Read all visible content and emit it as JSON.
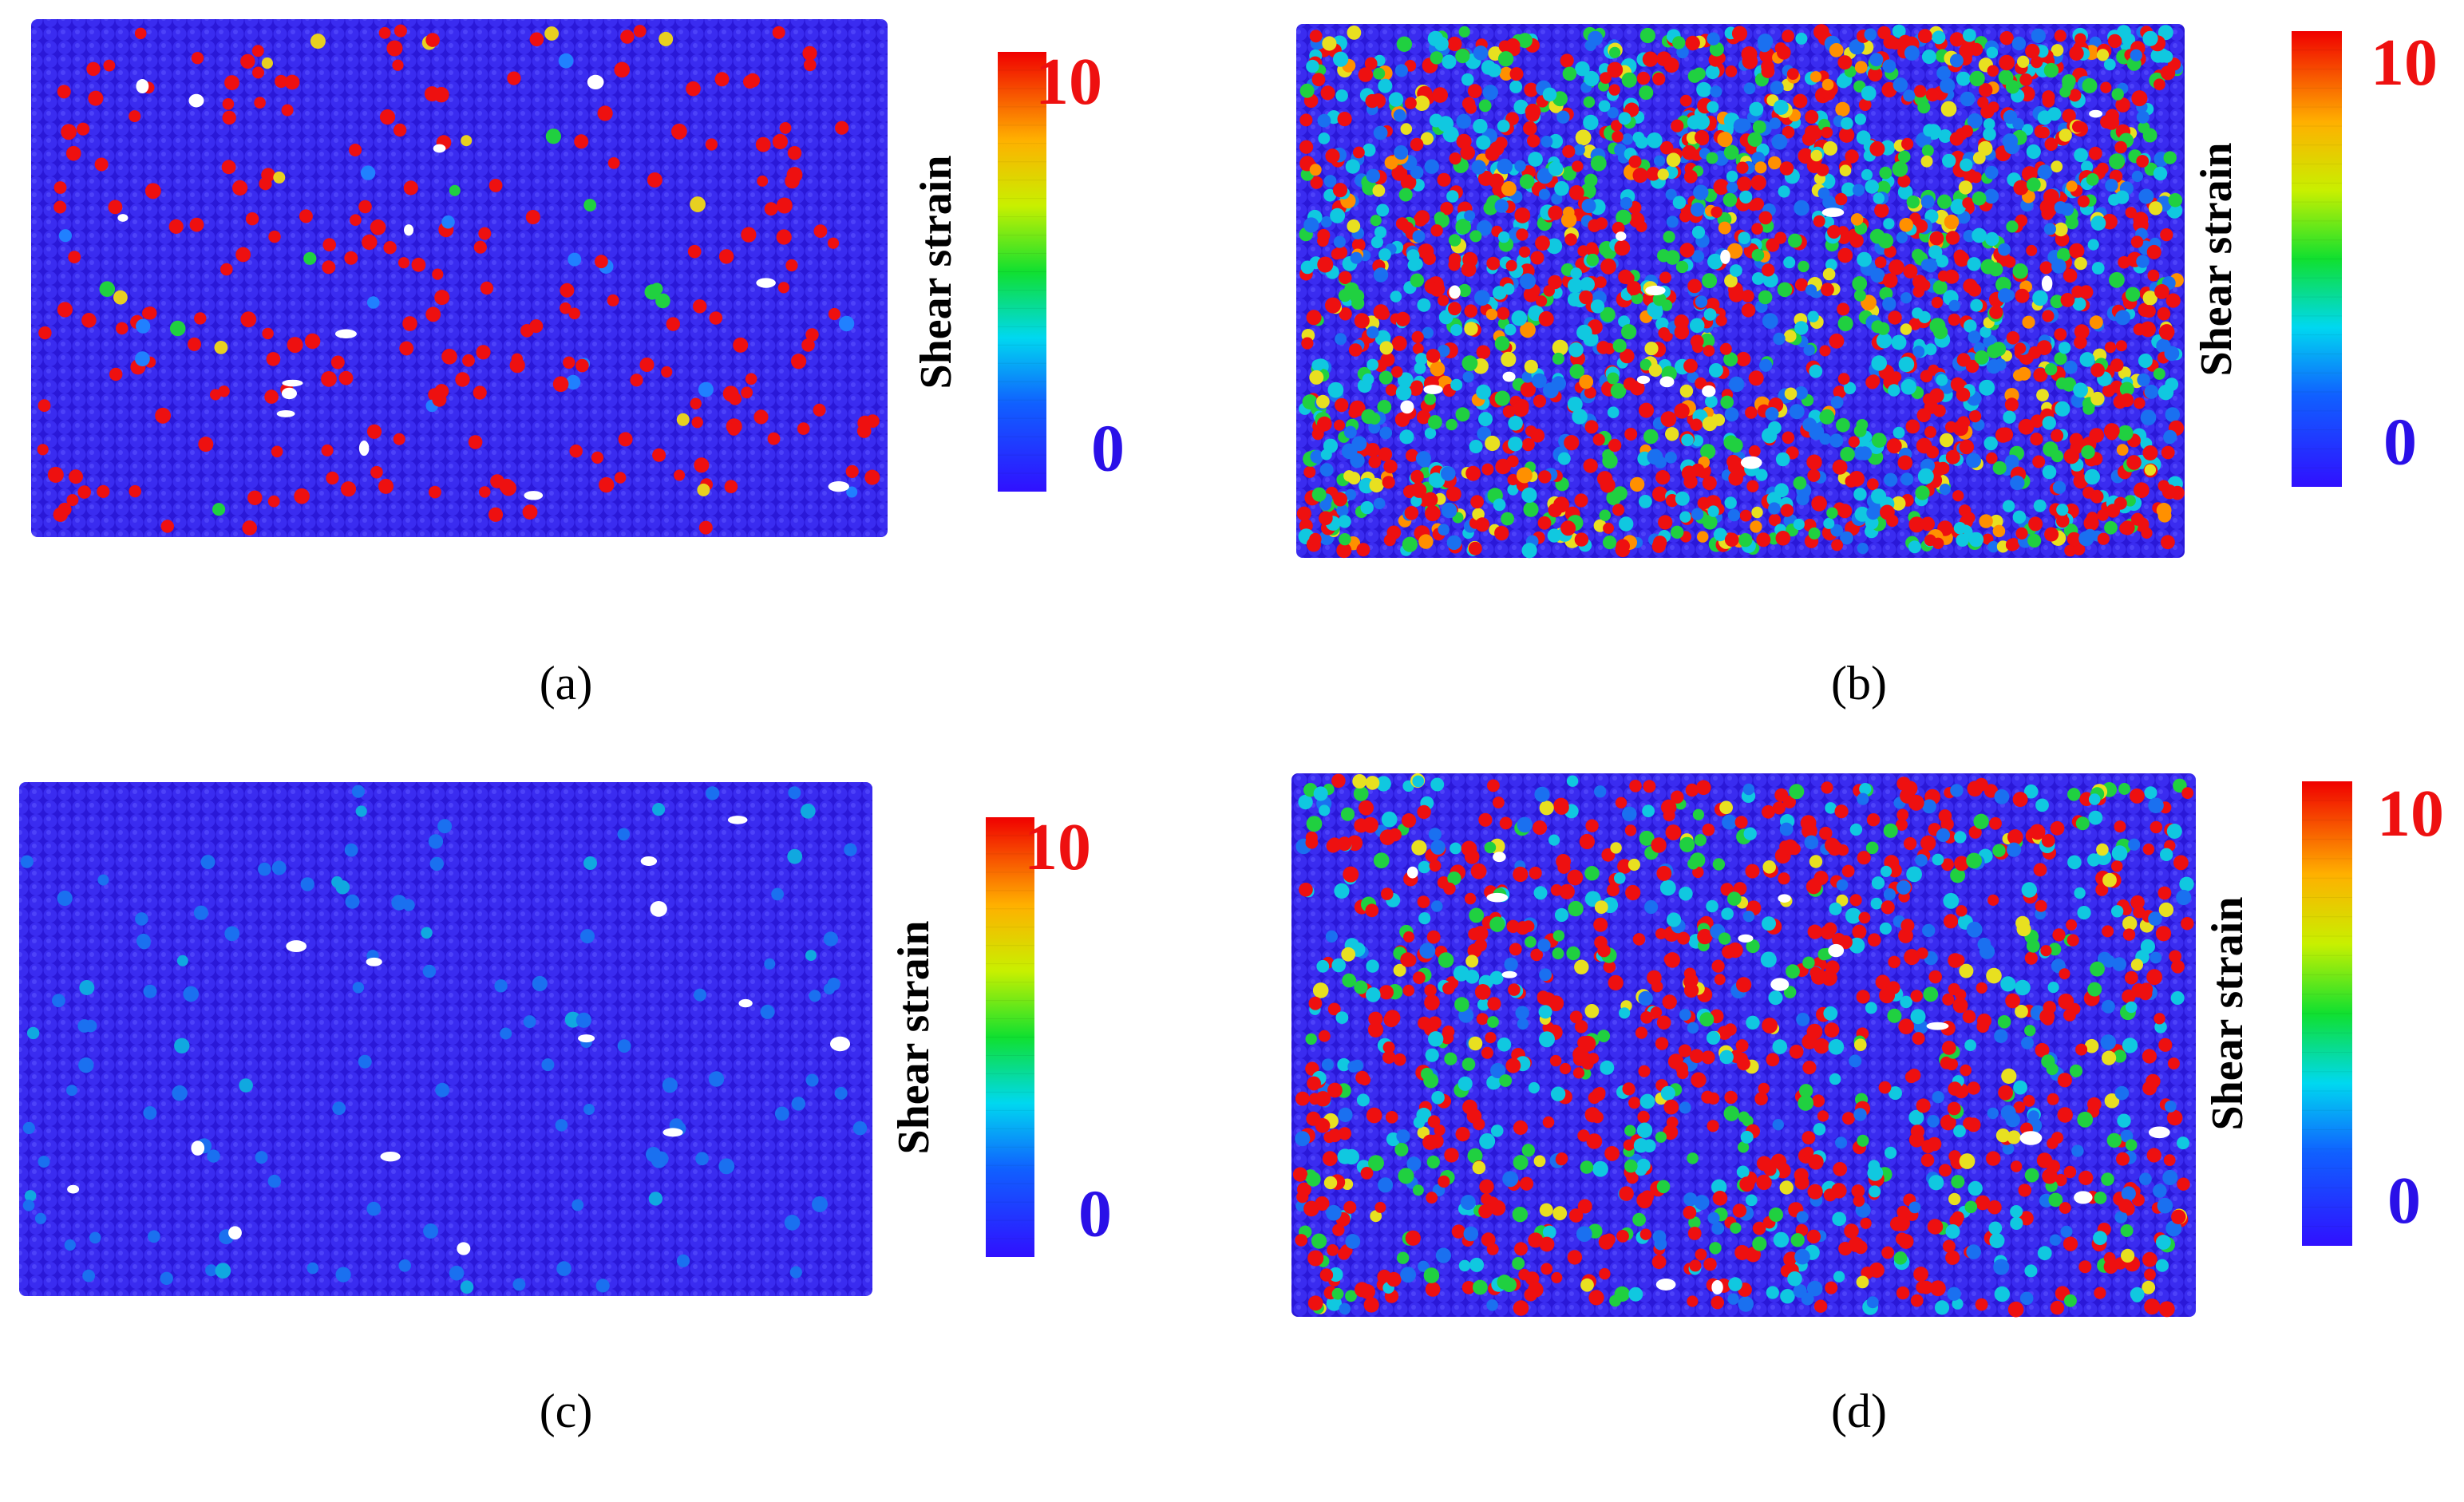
{
  "panels": [
    {
      "caption": "(a)",
      "colorbar": {
        "title": "Shear strain",
        "lim": [
          -1,
          11
        ],
        "ticks": [
          0,
          10
        ]
      }
    },
    {
      "caption": "(b)",
      "colorbar": {
        "title": "Shear strain",
        "lim": [
          -1,
          11
        ],
        "ticks": [
          0,
          10
        ]
      }
    },
    {
      "caption": "(c)",
      "colorbar": {
        "title": "Shear strain",
        "lim": [
          -1,
          11
        ],
        "ticks": [
          0,
          10
        ]
      }
    },
    {
      "caption": "(d)",
      "colorbar": {
        "title": "Shear strain",
        "lim": [
          -1,
          11
        ],
        "ticks": [
          0,
          10
        ]
      }
    }
  ]
}
